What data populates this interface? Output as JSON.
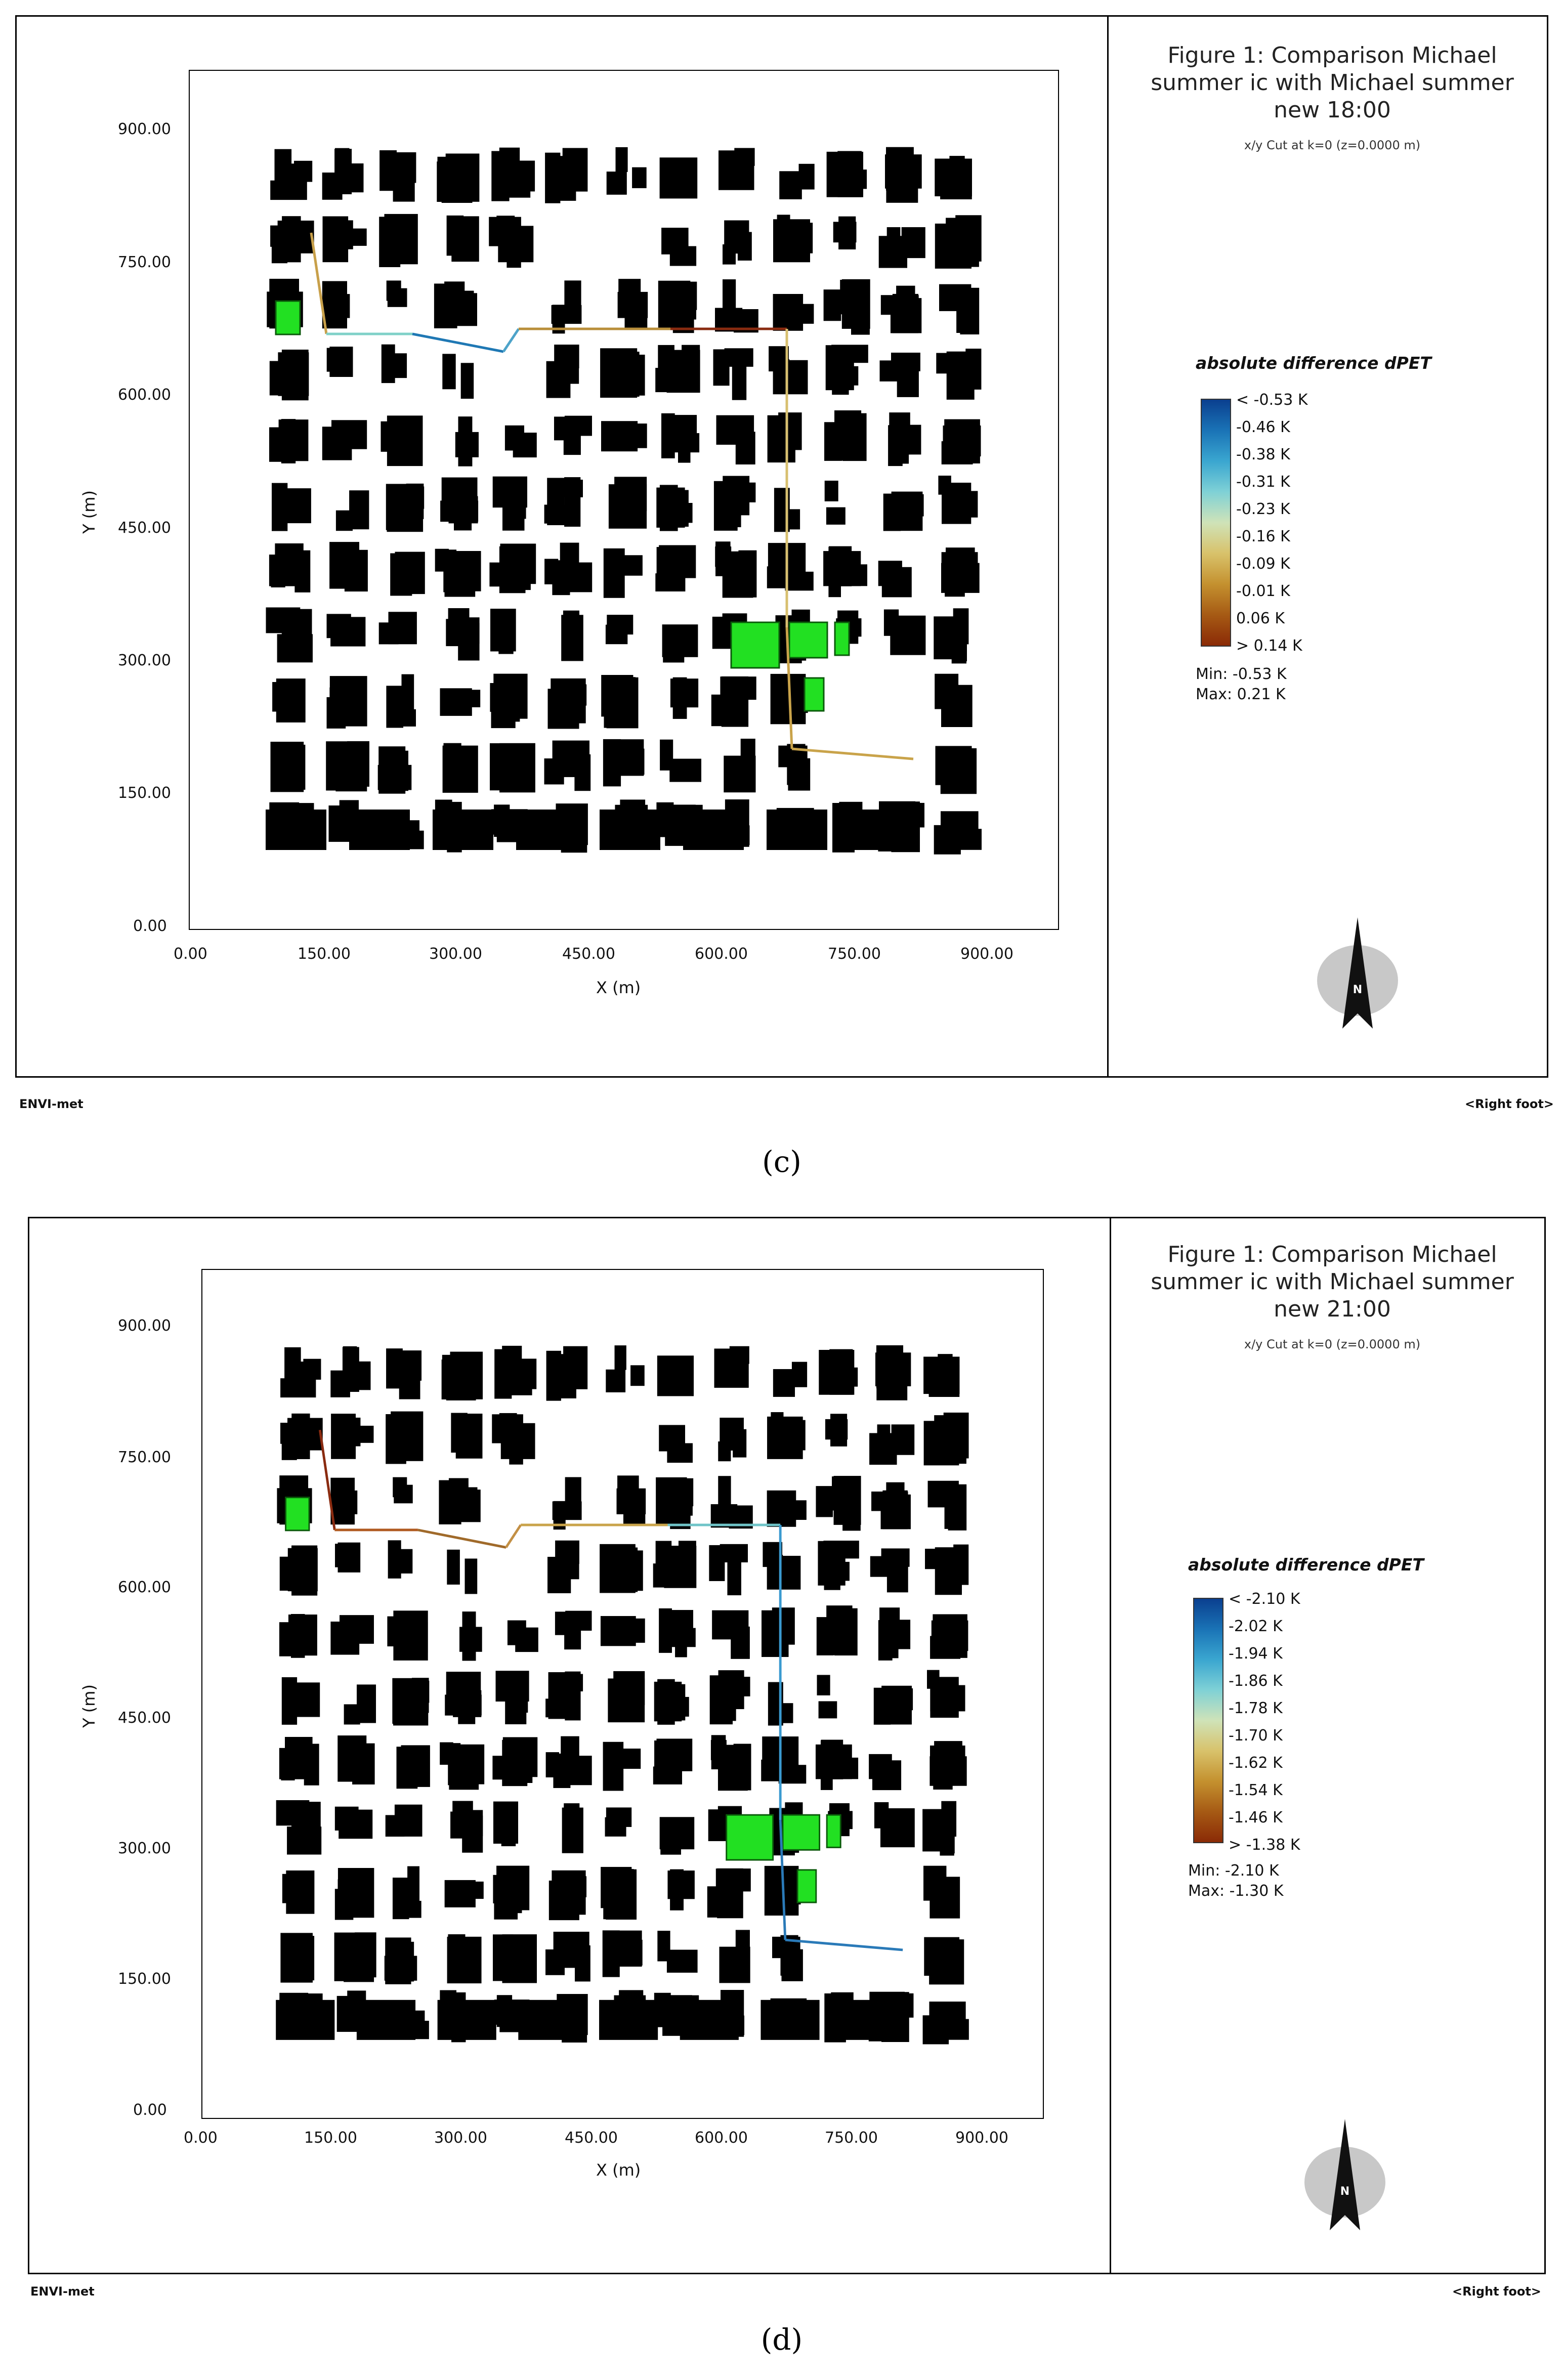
{
  "panels": [
    {
      "title_lines": [
        "Figure 1: Comparison Michael",
        "summer ic with Michael summer",
        "new 18:00"
      ],
      "subtitle": "x/y Cut at k=0 (z=0.0000 m)",
      "legend_title": "absolute difference dPET",
      "legend_ticks": [
        "< -0.53 K",
        "-0.46  K",
        "-0.38  K",
        "-0.31  K",
        "-0.23  K",
        "-0.16  K",
        "-0.09  K",
        "-0.01  K",
        "0.06  K",
        "> 0.14 K"
      ],
      "min": "Min: -0.53 K",
      "max": "Max: 0.21 K",
      "x_ticks": [
        "0.00",
        "150.00",
        "300.00",
        "450.00",
        "600.00",
        "750.00",
        "900.00"
      ],
      "y_ticks": [
        "900.00",
        "750.00",
        "600.00",
        "450.00",
        "300.00",
        "150.00",
        "0.00"
      ],
      "x_label": "X (m)",
      "y_label": "Y (m)",
      "footer_left": "ENVI-met",
      "footer_right": "<Right foot>",
      "compass_letter": "N",
      "caption": "(c)",
      "path_colors": [
        "#c8a04a",
        "#7fd1c8",
        "#1f78b4",
        "#4da3c9",
        "#b98e3a",
        "#8a2b10",
        "#d8c070",
        "#c9a34a"
      ]
    },
    {
      "title_lines": [
        "Figure 1: Comparison Michael",
        "summer ic with Michael summer",
        "new 21:00"
      ],
      "subtitle": "x/y Cut at k=0 (z=0.0000 m)",
      "legend_title": "absolute difference dPET",
      "legend_ticks": [
        "< -2.10 K",
        "-2.02  K",
        "-1.94  K",
        "-1.86  K",
        "-1.78  K",
        "-1.70  K",
        "-1.62  K",
        "-1.54  K",
        "-1.46  K",
        "> -1.38 K"
      ],
      "min": "Min: -2.10 K",
      "max": "Max: -1.30 K",
      "x_ticks": [
        "0.00",
        "150.00",
        "300.00",
        "450.00",
        "600.00",
        "750.00",
        "900.00"
      ],
      "y_ticks": [
        "900.00",
        "750.00",
        "600.00",
        "450.00",
        "300.00",
        "150.00",
        "0.00"
      ],
      "x_label": "X (m)",
      "y_label": "Y (m)",
      "footer_left": "ENVI-met",
      "footer_right": "<Right foot>",
      "compass_letter": "N",
      "caption": "(d)",
      "path_colors": [
        "#8a2b10",
        "#b05a20",
        "#a06a2a",
        "#c39045",
        "#c9a34a",
        "#6fc4c8",
        "#3a9ad0",
        "#2a7ab8"
      ]
    }
  ],
  "colors": {
    "building": "#000000",
    "vegetation": "#22e022",
    "vegetation_outline": "#0a5a0a",
    "colorbar_stops": [
      "#0a3f8f",
      "#1a73b6",
      "#3aa6d0",
      "#7fd1d6",
      "#cfe3b8",
      "#d8c26b",
      "#c4912f",
      "#a65a14",
      "#8a2a06"
    ]
  }
}
